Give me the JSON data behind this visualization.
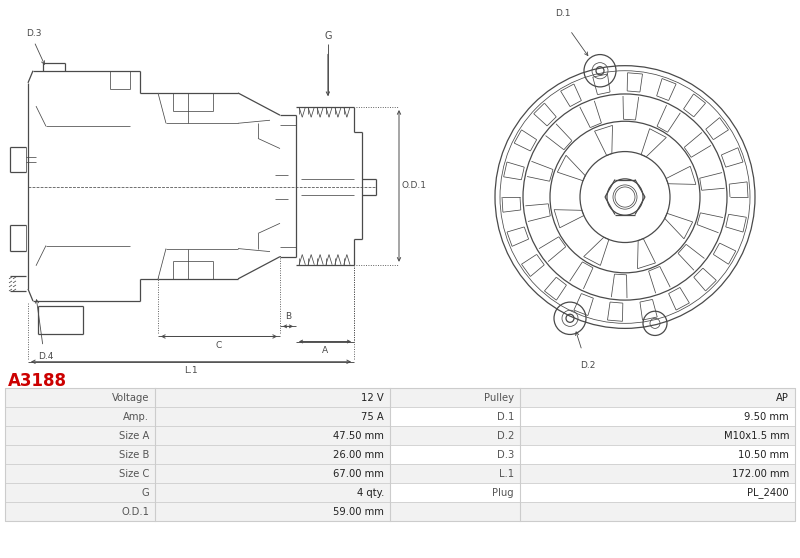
{
  "title": "A3188",
  "title_color": "#cc0000",
  "bg_color": "#ffffff",
  "table_data": [
    [
      "Voltage",
      "12 V",
      "Pulley",
      "AP"
    ],
    [
      "Amp.",
      "75 A",
      "D.1",
      "9.50 mm"
    ],
    [
      "Size A",
      "47.50 mm",
      "D.2",
      "M10x1.5 mm"
    ],
    [
      "Size B",
      "26.00 mm",
      "D.3",
      "10.50 mm"
    ],
    [
      "Size C",
      "67.00 mm",
      "L.1",
      "172.00 mm"
    ],
    [
      "G",
      "4 qty.",
      "Plug",
      "PL_2400"
    ],
    [
      "O.D.1",
      "59.00 mm",
      "",
      ""
    ]
  ],
  "line_color": "#4a4a4a",
  "dim_color": "#4a4a4a",
  "table_row_bg": [
    "#f2f2f2",
    "#ffffff"
  ],
  "table_border_color": "#cccccc"
}
